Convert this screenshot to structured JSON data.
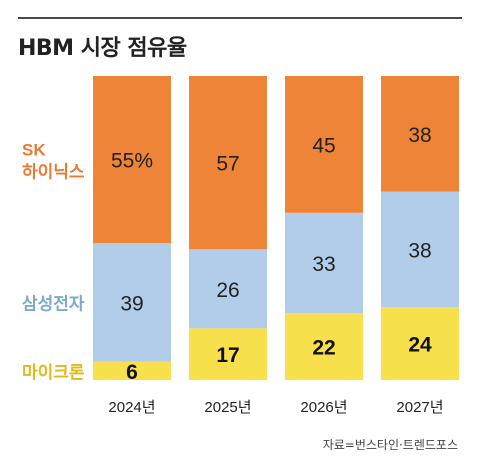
{
  "title": "HBM 시장 점유율",
  "source": "자료=번스타인·트렌드포스",
  "chart_data": {
    "type": "bar",
    "stacked": true,
    "categories": [
      "2024년",
      "2025년",
      "2026년",
      "2027년"
    ],
    "series": [
      {
        "name": "마이크론",
        "label_lines": [
          "마이크론"
        ],
        "values": [
          6,
          17,
          22,
          24
        ],
        "labels": [
          "6",
          "17",
          "22",
          "24"
        ],
        "color": "#f7e04b",
        "label_color": "#e3b81d",
        "value_color": "#111111",
        "value_bold": true
      },
      {
        "name": "삼성전자",
        "label_lines": [
          "삼성전자"
        ],
        "values": [
          39,
          26,
          33,
          38
        ],
        "labels": [
          "39",
          "26",
          "33",
          "38"
        ],
        "color": "#b1cdea",
        "label_color": "#7da8cf",
        "value_color": "#222222",
        "value_bold": false
      },
      {
        "name": "SK 하이닉스",
        "label_lines": [
          "SK",
          "하이닉스"
        ],
        "values": [
          55,
          57,
          45,
          38
        ],
        "labels": [
          "55%",
          "57",
          "45",
          "38"
        ],
        "color": "#ee8437",
        "label_color": "#e87b35",
        "value_color": "#222222",
        "value_bold": false
      }
    ],
    "ylim": [
      0,
      100
    ],
    "legend": "left",
    "grid": false
  }
}
